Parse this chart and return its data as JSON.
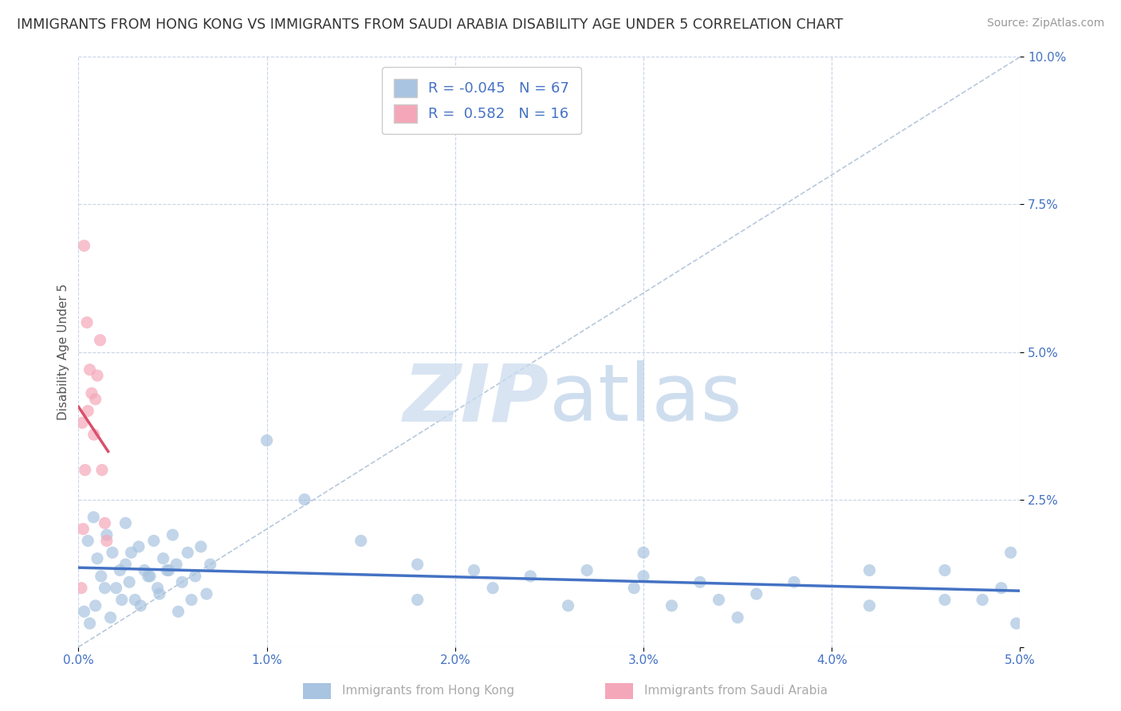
{
  "title": "IMMIGRANTS FROM HONG KONG VS IMMIGRANTS FROM SAUDI ARABIA DISABILITY AGE UNDER 5 CORRELATION CHART",
  "source": "Source: ZipAtlas.com",
  "xlabel_hk": "Immigrants from Hong Kong",
  "xlabel_sa": "Immigrants from Saudi Arabia",
  "ylabel": "Disability Age Under 5",
  "xlim": [
    0.0,
    0.05
  ],
  "ylim": [
    0.0,
    0.1
  ],
  "xticks": [
    0.0,
    0.01,
    0.02,
    0.03,
    0.04,
    0.05
  ],
  "xtick_labels": [
    "0.0%",
    "1.0%",
    "2.0%",
    "3.0%",
    "4.0%",
    "5.0%"
  ],
  "yticks": [
    0.0,
    0.025,
    0.05,
    0.075,
    0.1
  ],
  "ytick_labels": [
    "",
    "2.5%",
    "5.0%",
    "7.5%",
    "10.0%"
  ],
  "color_hk": "#a8c4e0",
  "color_sa": "#f4a7b9",
  "line_color_hk": "#4472c4",
  "line_color_sa": "#d94f6b",
  "R_hk": -0.045,
  "N_hk": 67,
  "R_sa": 0.582,
  "N_sa": 16,
  "background_color": "#ffffff",
  "grid_color": "#c8d4e8",
  "title_fontsize": 12.5,
  "axis_fontsize": 11,
  "tick_fontsize": 11,
  "legend_fontsize": 13,
  "hk_x": [
    0.0005,
    0.0008,
    0.001,
    0.0012,
    0.0015,
    0.0018,
    0.002,
    0.0022,
    0.0025,
    0.0025,
    0.0028,
    0.003,
    0.0032,
    0.0035,
    0.0038,
    0.004,
    0.0042,
    0.0045,
    0.0048,
    0.005,
    0.0052,
    0.0055,
    0.0058,
    0.006,
    0.0062,
    0.0065,
    0.0068,
    0.007,
    0.0003,
    0.0006,
    0.0009,
    0.0014,
    0.0017,
    0.0023,
    0.0027,
    0.0033,
    0.0037,
    0.0043,
    0.0047,
    0.0053,
    0.01,
    0.012,
    0.015,
    0.018,
    0.021,
    0.024,
    0.027,
    0.03,
    0.033,
    0.036,
    0.018,
    0.022,
    0.026,
    0.03,
    0.034,
    0.038,
    0.042,
    0.046,
    0.042,
    0.046,
    0.048,
    0.049,
    0.0295,
    0.0315,
    0.035,
    0.0495,
    0.0498
  ],
  "hk_y": [
    0.018,
    0.022,
    0.015,
    0.012,
    0.019,
    0.016,
    0.01,
    0.013,
    0.021,
    0.014,
    0.016,
    0.008,
    0.017,
    0.013,
    0.012,
    0.018,
    0.01,
    0.015,
    0.013,
    0.019,
    0.014,
    0.011,
    0.016,
    0.008,
    0.012,
    0.017,
    0.009,
    0.014,
    0.006,
    0.004,
    0.007,
    0.01,
    0.005,
    0.008,
    0.011,
    0.007,
    0.012,
    0.009,
    0.013,
    0.006,
    0.035,
    0.025,
    0.018,
    0.014,
    0.013,
    0.012,
    0.013,
    0.016,
    0.011,
    0.009,
    0.008,
    0.01,
    0.007,
    0.012,
    0.008,
    0.011,
    0.007,
    0.013,
    0.013,
    0.008,
    0.008,
    0.01,
    0.01,
    0.007,
    0.005,
    0.016,
    0.004
  ],
  "sa_x": [
    0.00015,
    0.00025,
    0.00035,
    0.0005,
    0.0006,
    0.0007,
    0.00082,
    0.0009,
    0.001,
    0.00115,
    0.00125,
    0.0014,
    0.0003,
    0.00045,
    0.0015,
    0.0002
  ],
  "sa_y": [
    0.01,
    0.02,
    0.03,
    0.04,
    0.047,
    0.043,
    0.036,
    0.042,
    0.046,
    0.052,
    0.03,
    0.021,
    0.068,
    0.055,
    0.018,
    0.038
  ]
}
